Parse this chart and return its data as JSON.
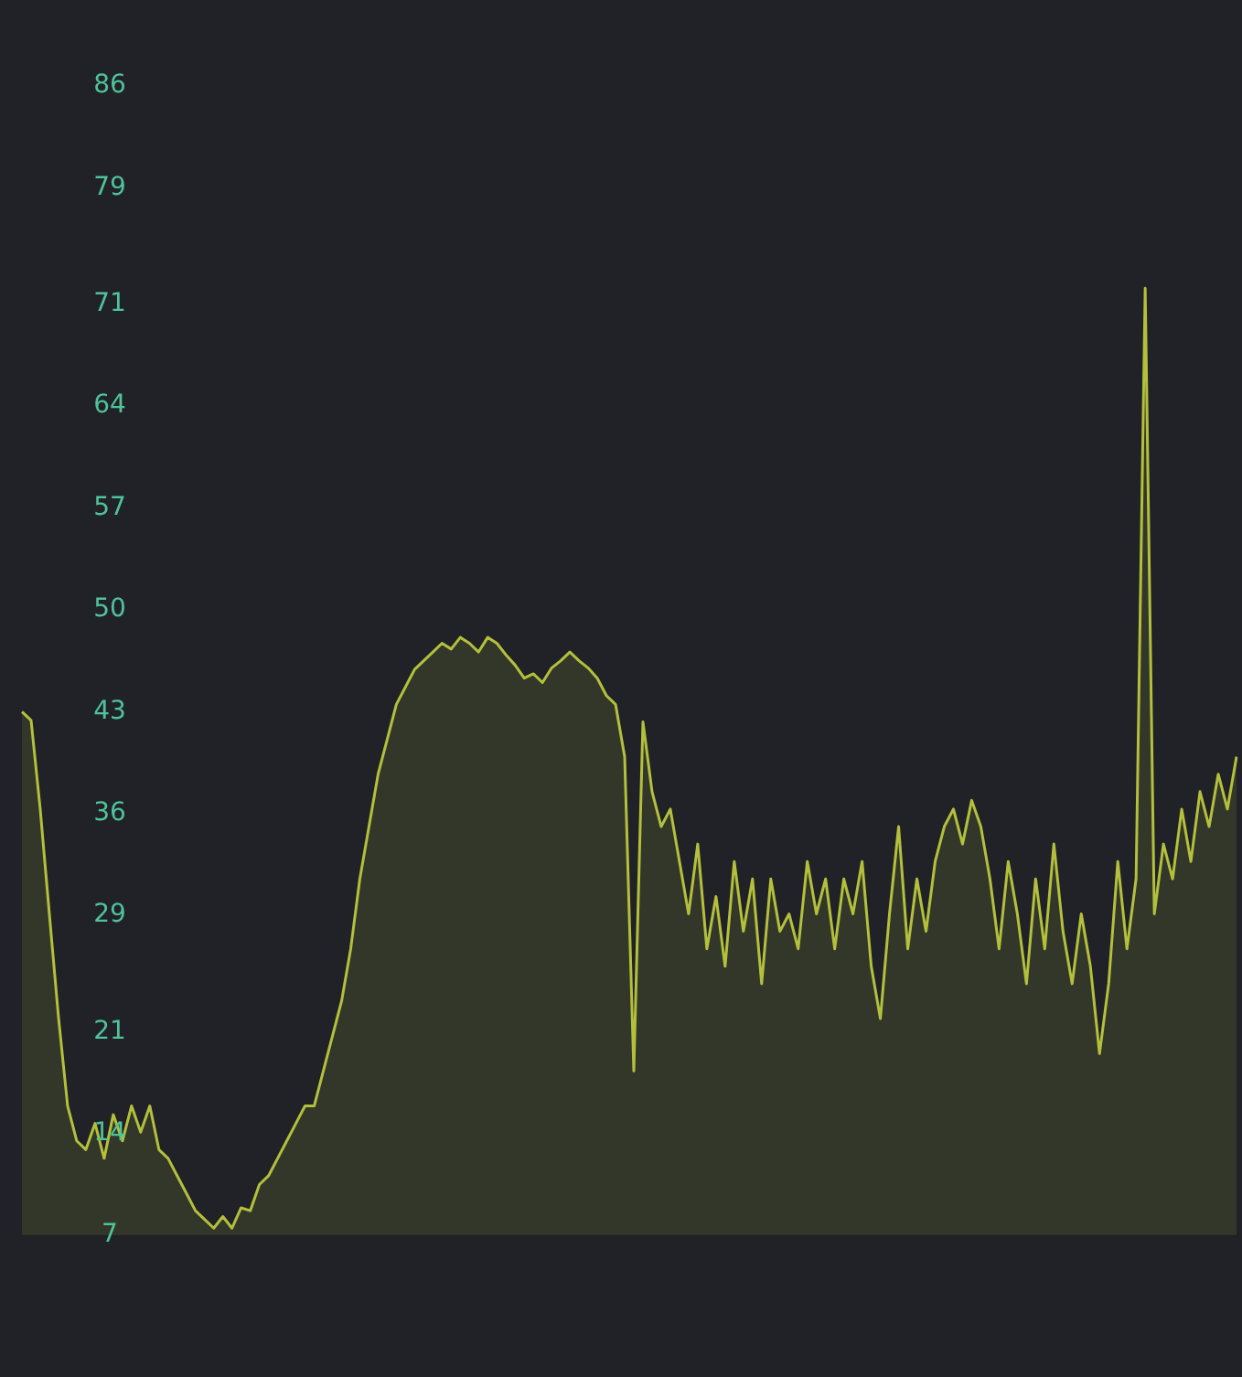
{
  "chart_data": {
    "type": "area",
    "categories": [
      null,
      null,
      null,
      null,
      null,
      null,
      null,
      null,
      null,
      null,
      null,
      null,
      null,
      null,
      null,
      null,
      null,
      null,
      null,
      null,
      null,
      null,
      null,
      null,
      null,
      null,
      null,
      null,
      null,
      null,
      null,
      null,
      null,
      null,
      null,
      null,
      null,
      null,
      null,
      null,
      null,
      null,
      null,
      null,
      null,
      null,
      null,
      null,
      null,
      null,
      null,
      null,
      null,
      null,
      null,
      null,
      null,
      null,
      null,
      null,
      null,
      null,
      null,
      null,
      null,
      null,
      null,
      null,
      null,
      null,
      null,
      null,
      null,
      null,
      null,
      null,
      null,
      null,
      null,
      null,
      null,
      null,
      null,
      null,
      null,
      null,
      null,
      null,
      null,
      null,
      null,
      null,
      null,
      null,
      null,
      null,
      null,
      null,
      null,
      null,
      null,
      null,
      null,
      null,
      null,
      null,
      null,
      null,
      null,
      null,
      null,
      null,
      null,
      null,
      null,
      null,
      null,
      null,
      null,
      null,
      null,
      null,
      null,
      null,
      null,
      null,
      null,
      null,
      null,
      null,
      null,
      null,
      null,
      null
    ],
    "series": [
      {
        "color": "#b4c03c",
        "values": [
          43,
          42.4,
          36.3,
          29.1,
          22,
          15.9,
          13.5,
          12.9,
          14.7,
          12.3,
          15.3,
          13.5,
          15.9,
          14.1,
          15.9,
          12.9,
          12.3,
          11.1,
          9.9,
          8.7,
          8.1,
          7.5,
          8.3,
          7.5,
          8.9,
          8.7,
          10.5,
          11.1,
          12.3,
          13.5,
          14.7,
          15.9,
          15.9,
          18.3,
          20.7,
          23.1,
          26.7,
          31.5,
          35.1,
          38.7,
          41.1,
          43.5,
          44.7,
          45.9,
          46.5,
          47.1,
          47.7,
          47.3,
          48.1,
          47.7,
          47.1,
          48.1,
          47.7,
          46.9,
          46.2,
          45.3,
          45.6,
          45,
          46,
          46.5,
          47.1,
          46.5,
          46,
          45.3,
          44.1,
          43.5,
          39.9,
          18.3,
          42.3,
          37.5,
          35.1,
          36.3,
          32.7,
          29.1,
          33.9,
          26.7,
          30.3,
          25.5,
          32.7,
          27.9,
          31.5,
          24.3,
          31.5,
          27.9,
          29.1,
          26.7,
          32.7,
          29.1,
          31.5,
          26.7,
          31.5,
          29.1,
          32.7,
          25.5,
          21.9,
          29.1,
          35.1,
          26.7,
          31.5,
          27.9,
          32.7,
          35.1,
          36.3,
          33.9,
          36.9,
          35.1,
          31.5,
          26.7,
          32.7,
          29.1,
          24.3,
          31.5,
          26.7,
          33.9,
          27.9,
          24.3,
          29.1,
          25.5,
          19.5,
          24.3,
          32.7,
          26.7,
          31.5,
          72.1,
          29.1,
          33.9,
          31.5,
          36.3,
          32.7,
          37.5,
          35.1,
          38.7,
          36.3,
          39.9
        ]
      }
    ],
    "ylim": [
      7,
      86
    ],
    "yticks": [
      7,
      14,
      21,
      29,
      36,
      43,
      50,
      57,
      64,
      71,
      79,
      86
    ],
    "legend": false
  }
}
